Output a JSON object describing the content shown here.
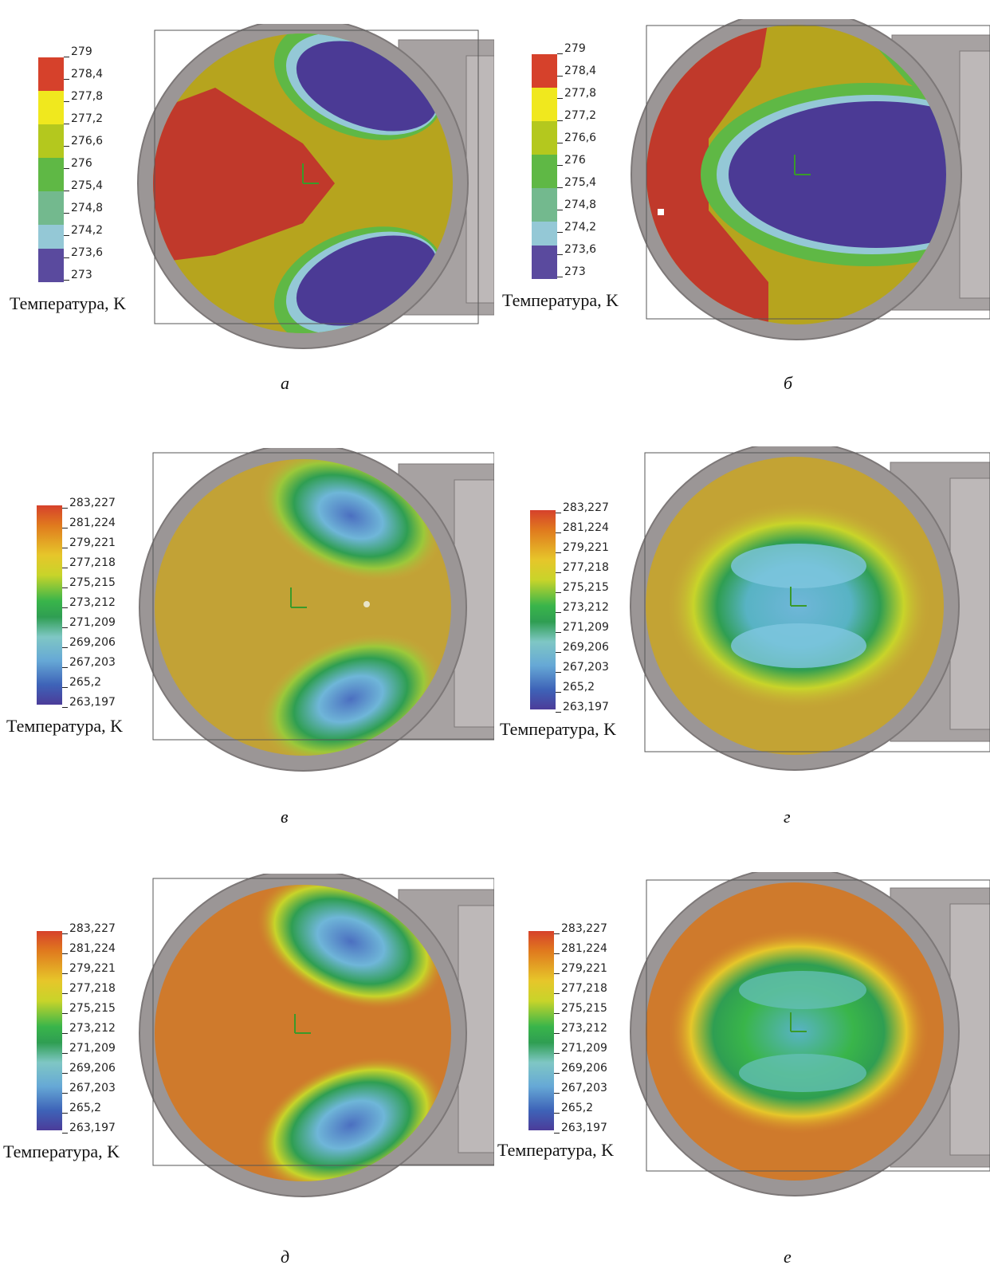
{
  "panels": [
    {
      "caption": "а",
      "unit_label": "Температура, K",
      "scale": [
        "279",
        "278,4",
        "277,8",
        "277,2",
        "276,6",
        "276",
        "275,4",
        "274,8",
        "274,2",
        "273,6",
        "273"
      ],
      "scale_style": "discrete",
      "pattern": "two-blue-lobes-discrete"
    },
    {
      "caption": "б",
      "unit_label": "Температура, K",
      "scale": [
        "279",
        "278,4",
        "277,8",
        "277,2",
        "276,6",
        "276",
        "275,4",
        "274,8",
        "274,2",
        "273,6",
        "273"
      ],
      "scale_style": "discrete",
      "pattern": "central-blue-discrete"
    },
    {
      "caption": "в",
      "unit_label": "Температура, K",
      "scale": [
        "283,227",
        "281,224",
        "279,221",
        "277,218",
        "275,215",
        "273,212",
        "271,209",
        "269,206",
        "267,203",
        "265,2",
        "263,197"
      ],
      "scale_style": "continuous",
      "pattern": "two-lobes-smooth"
    },
    {
      "caption": "г",
      "unit_label": "Температура, K",
      "scale": [
        "283,227",
        "281,224",
        "279,221",
        "277,218",
        "275,215",
        "273,212",
        "271,209",
        "269,206",
        "267,203",
        "265,2",
        "263,197"
      ],
      "scale_style": "continuous",
      "pattern": "central-smooth"
    },
    {
      "caption": "д",
      "unit_label": "Температура, K",
      "scale": [
        "283,227",
        "281,224",
        "279,221",
        "277,218",
        "275,215",
        "273,212",
        "271,209",
        "269,206",
        "267,203",
        "265,2",
        "263,197"
      ],
      "scale_style": "continuous",
      "pattern": "two-lobes-smooth"
    },
    {
      "caption": "е",
      "unit_label": "Температура, K",
      "scale": [
        "283,227",
        "281,224",
        "279,221",
        "277,218",
        "275,215",
        "273,212",
        "271,209",
        "269,206",
        "267,203",
        "265,2",
        "263,197"
      ],
      "scale_style": "continuous",
      "pattern": "central-smooth"
    }
  ],
  "colors": {
    "discrete": [
      "#d6412b",
      "#e8b423",
      "#f0e81e",
      "#b4c81e",
      "#5fb845",
      "#73b98e",
      "#94c8d6",
      "#5a4a9e"
    ],
    "continuous": [
      "#d6412b",
      "#e07a1e",
      "#e6c62a",
      "#c8d42a",
      "#39b54a",
      "#2f9e52",
      "#7fc7c4",
      "#66a8d6",
      "#3e63b8",
      "#4b3c99"
    ],
    "field_red": "#c0392b",
    "field_olive": "#b6a41e",
    "field_blue": "#4b3a95",
    "field_orange": "#cf7a2c",
    "frame_gray": "#8f8a8a"
  }
}
